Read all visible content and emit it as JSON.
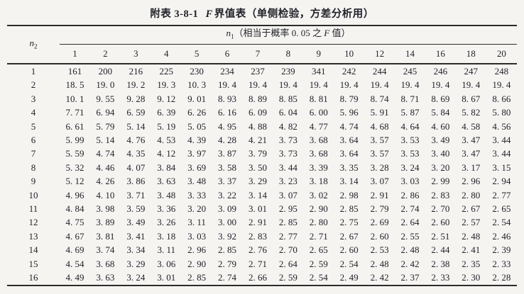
{
  "title": {
    "prefix": "附表 3-8-1",
    "f": "F",
    "suffix": "界值表（单侧检验，方差分析用）"
  },
  "header": {
    "n2_var": "n",
    "n2_sub": "2",
    "n1_var": "n",
    "n1_sub": "1",
    "n1_desc_pre": "（相当于概率 0. 05 之 ",
    "n1_desc_f": "F",
    "n1_desc_post": " 值）"
  },
  "table": {
    "columns": [
      "1",
      "2",
      "3",
      "4",
      "5",
      "6",
      "7",
      "8",
      "9",
      "10",
      "12",
      "14",
      "16",
      "18",
      "20"
    ],
    "rows": [
      {
        "n2": "1",
        "values": [
          "161",
          "200",
          "216",
          "225",
          "230",
          "234",
          "237",
          "239",
          "341",
          "242",
          "244",
          "245",
          "246",
          "247",
          "248"
        ]
      },
      {
        "n2": "2",
        "values": [
          "18. 5",
          "19. 0",
          "19. 2",
          "19. 3",
          "10. 3",
          "19. 4",
          "19. 4",
          "19. 4",
          "19. 4",
          "19. 4",
          "19. 4",
          "19. 4",
          "19. 4",
          "19. 4",
          "19. 4"
        ]
      },
      {
        "n2": "3",
        "values": [
          "10. 1",
          "9. 55",
          "9. 28",
          "9. 12",
          "9. 01",
          "8. 93",
          "8. 89",
          "8. 85",
          "8. 81",
          "8. 79",
          "8. 74",
          "8. 71",
          "8. 69",
          "8. 67",
          "8. 66"
        ]
      },
      {
        "n2": "4",
        "values": [
          "7. 71",
          "6. 94",
          "6. 59",
          "6. 39",
          "6. 26",
          "6. 16",
          "6. 09",
          "6. 04",
          "6. 00",
          "5. 96",
          "5. 91",
          "5. 87",
          "5. 84",
          "5. 82",
          "5. 80"
        ]
      },
      {
        "n2": "5",
        "values": [
          "6. 61",
          "5. 79",
          "5. 14",
          "5. 19",
          "5. 05",
          "4. 95",
          "4. 88",
          "4. 82",
          "4. 77",
          "4. 74",
          "4. 68",
          "4. 64",
          "4. 60",
          "4. 58",
          "4. 56"
        ]
      },
      {
        "n2": "6",
        "values": [
          "5. 99",
          "5. 14",
          "4. 76",
          "4. 53",
          "4. 39",
          "4. 28",
          "4. 21",
          "3. 73",
          "3. 68",
          "3. 64",
          "3. 57",
          "3. 53",
          "3. 49",
          "3. 47",
          "3. 44"
        ]
      },
      {
        "n2": "7",
        "values": [
          "5. 59",
          "4. 74",
          "4. 35",
          "4. 12",
          "3. 97",
          "3. 87",
          "3. 79",
          "3. 73",
          "3. 68",
          "3. 64",
          "3. 57",
          "3. 53",
          "3. 40",
          "3. 47",
          "3. 44"
        ]
      },
      {
        "n2": "8",
        "values": [
          "5. 32",
          "4. 46",
          "4. 07",
          "3. 84",
          "3. 69",
          "3. 58",
          "3. 50",
          "3. 44",
          "3. 39",
          "3. 35",
          "3. 28",
          "3. 24",
          "3. 20",
          "3. 17",
          "3. 15"
        ]
      },
      {
        "n2": "9",
        "values": [
          "5. 12",
          "4. 26",
          "3. 86",
          "3. 63",
          "3. 48",
          "3. 37",
          "3. 29",
          "3. 23",
          "3. 18",
          "3. 14",
          "3. 07",
          "3. 03",
          "2. 99",
          "2. 96",
          "2. 94"
        ]
      },
      {
        "n2": "10",
        "values": [
          "4. 96",
          "4. 10",
          "3. 71",
          "3. 48",
          "3. 33",
          "3. 22",
          "3. 14",
          "3. 07",
          "3. 02",
          "2. 98",
          "2. 91",
          "2. 86",
          "2. 83",
          "2. 80",
          "2. 77"
        ]
      },
      {
        "n2": "11",
        "values": [
          "4. 84",
          "3. 98",
          "3. 59",
          "3. 36",
          "3. 20",
          "3. 09",
          "3. 01",
          "2. 95",
          "2. 90",
          "2. 85",
          "2. 79",
          "2. 74",
          "2. 70",
          "2. 67",
          "2. 65"
        ]
      },
      {
        "n2": "12",
        "values": [
          "4. 75",
          "3. 89",
          "3. 49",
          "3. 26",
          "3. 11",
          "3. 00",
          "2. 91",
          "2. 85",
          "2. 80",
          "2. 75",
          "2. 69",
          "2. 64",
          "2. 60",
          "2. 57",
          "2. 54"
        ]
      },
      {
        "n2": "13",
        "values": [
          "4. 67",
          "3. 81",
          "3. 41",
          "3. 18",
          "3. 03",
          "3. 92",
          "2. 83",
          "2. 77",
          "2. 71",
          "2. 67",
          "2. 60",
          "2. 55",
          "2. 51",
          "2. 48",
          "2. 46"
        ]
      },
      {
        "n2": "14",
        "values": [
          "4. 69",
          "3. 74",
          "3. 34",
          "3. 11",
          "2. 96",
          "2. 85",
          "2. 76",
          "2. 70",
          "2. 65",
          "2. 60",
          "2. 53",
          "2. 48",
          "2. 44",
          "2. 41",
          "2. 39"
        ]
      },
      {
        "n2": "15",
        "values": [
          "4. 54",
          "3. 68",
          "3. 29",
          "3. 06",
          "2. 90",
          "2. 79",
          "2. 71",
          "2. 64",
          "2. 59",
          "2. 54",
          "2. 48",
          "2. 42",
          "2. 38",
          "2. 35",
          "2. 33"
        ]
      },
      {
        "n2": "16",
        "values": [
          "4. 49",
          "3. 63",
          "3. 24",
          "3. 01",
          "2. 85",
          "2. 74",
          "2. 66",
          "2. 59",
          "2. 54",
          "2. 49",
          "2. 42",
          "2. 37",
          "2. 33",
          "2. 30",
          "2. 28"
        ]
      }
    ]
  }
}
